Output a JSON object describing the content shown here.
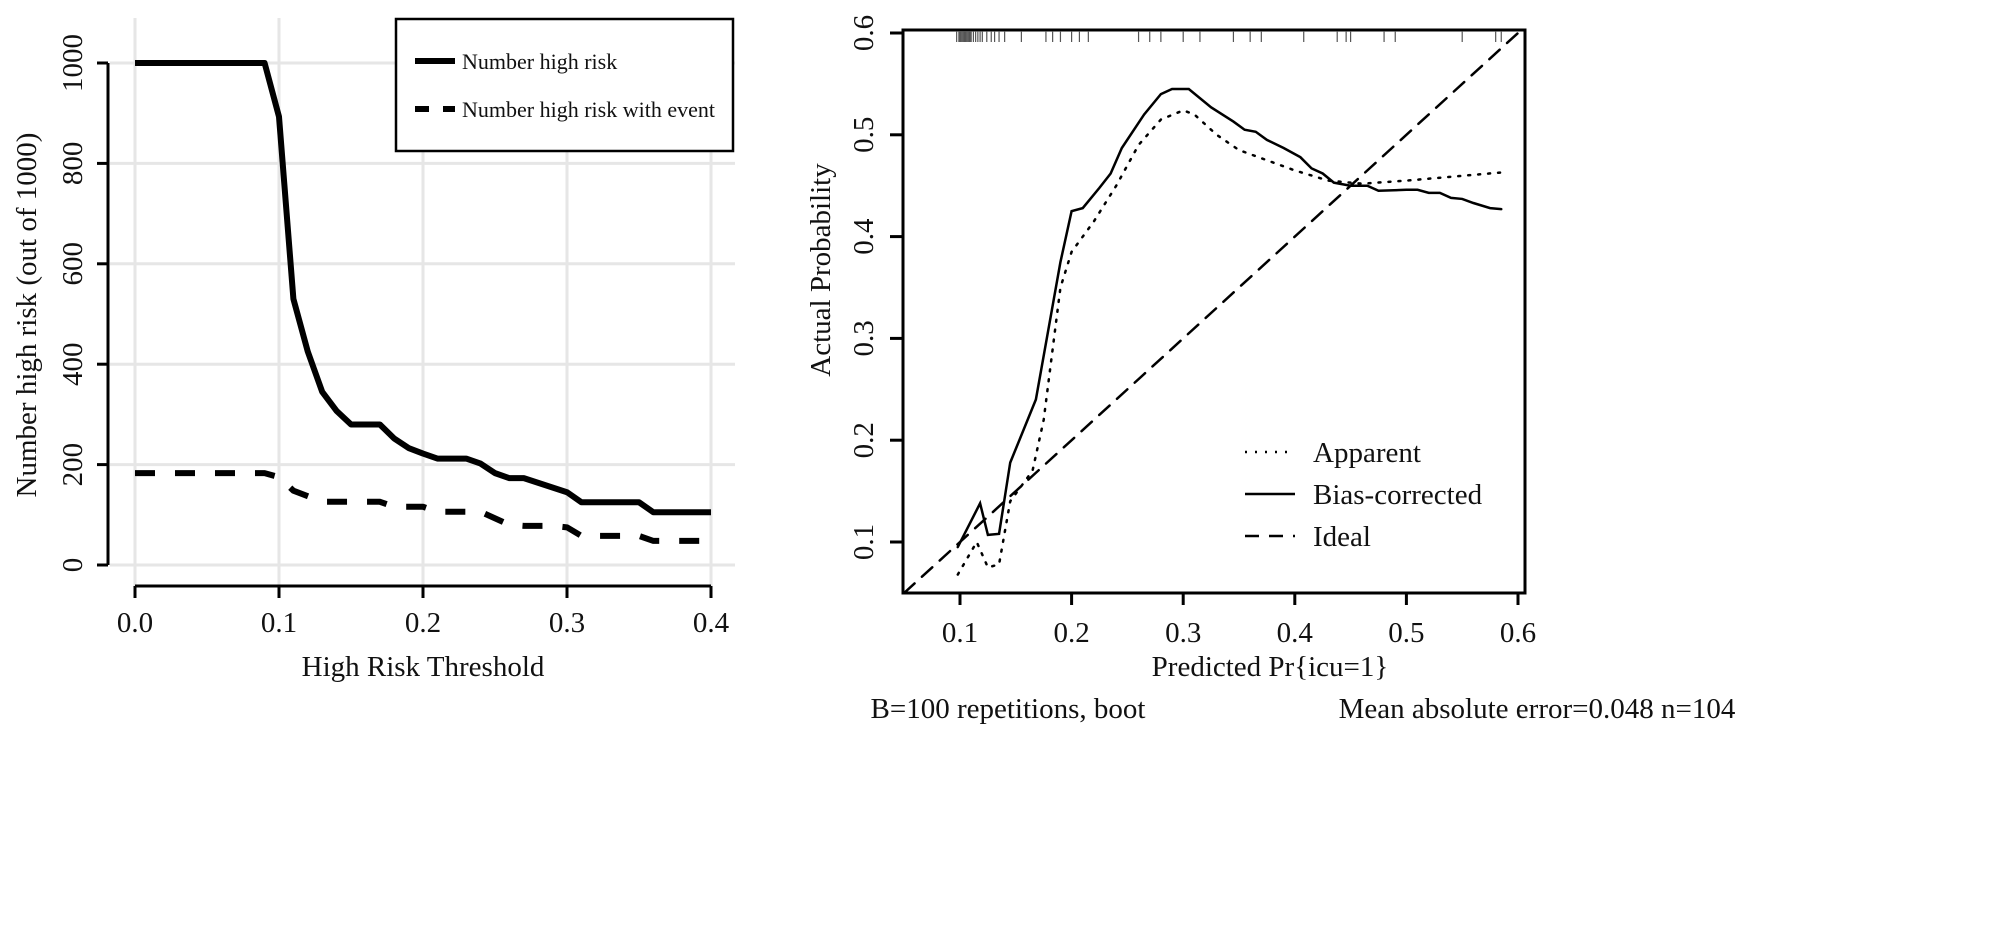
{
  "chart_data": [
    {
      "type": "line",
      "title": "",
      "xlabel": "High Risk Threshold",
      "ylabel": "Number high risk (out of 1000)",
      "xlim": [
        0,
        0.4
      ],
      "ylim": [
        0,
        1000
      ],
      "xticks": [
        "0.0",
        "0.1",
        "0.2",
        "0.3",
        "0.4"
      ],
      "yticks": [
        "0",
        "200",
        "400",
        "600",
        "800",
        "1000"
      ],
      "grid": true,
      "legend": "top-right",
      "series": [
        {
          "name": "Number high risk",
          "style": "solid-thick",
          "x": [
            0,
            0.09,
            0.1,
            0.11,
            0.12,
            0.13,
            0.14,
            0.15,
            0.17,
            0.18,
            0.19,
            0.2,
            0.21,
            0.23,
            0.24,
            0.25,
            0.26,
            0.27,
            0.3,
            0.31,
            0.35,
            0.36,
            0.4
          ],
          "y": [
            1000,
            1000,
            893,
            530,
            425,
            345,
            307,
            280,
            280,
            252,
            233,
            222,
            212,
            212,
            202,
            183,
            173,
            173,
            145,
            125,
            125,
            105,
            105
          ]
        },
        {
          "name": "Number high risk with event",
          "style": "dashed-thick",
          "x": [
            0,
            0.09,
            0.1,
            0.11,
            0.12,
            0.13,
            0.17,
            0.18,
            0.2,
            0.21,
            0.24,
            0.26,
            0.27,
            0.29,
            0.3,
            0.31,
            0.35,
            0.36,
            0.4
          ],
          "y": [
            183,
            183,
            175,
            148,
            137,
            126,
            126,
            116,
            116,
            106,
            106,
            80,
            78,
            78,
            75,
            58,
            58,
            48,
            48
          ]
        }
      ]
    },
    {
      "type": "line",
      "title": "",
      "xlabel": "Predicted Pr{icu=1}",
      "ylabel": "Actual Probability",
      "xlim": [
        0.05,
        0.606
      ],
      "ylim": [
        0.05,
        0.603
      ],
      "xticks": [
        "0.1",
        "0.2",
        "0.3",
        "0.4",
        "0.5",
        "0.6"
      ],
      "yticks": [
        "0.1",
        "0.2",
        "0.3",
        "0.4",
        "0.5",
        "0.6"
      ],
      "grid": false,
      "legend": "bottom-right",
      "footnote_left": "B=100 repetitions, boot",
      "footnote_right": "Mean absolute error=0.048 n=104",
      "rug": [
        0.097,
        0.099,
        0.1,
        0.101,
        0.102,
        0.103,
        0.104,
        0.105,
        0.106,
        0.107,
        0.108,
        0.109,
        0.11,
        0.112,
        0.114,
        0.116,
        0.118,
        0.12,
        0.124,
        0.128,
        0.131,
        0.135,
        0.14,
        0.155,
        0.177,
        0.183,
        0.19,
        0.2,
        0.207,
        0.215,
        0.26,
        0.27,
        0.28,
        0.3,
        0.315,
        0.345,
        0.36,
        0.37,
        0.408,
        0.438,
        0.446,
        0.45,
        0.48,
        0.49,
        0.55,
        0.58,
        0.585
      ],
      "series": [
        {
          "name": "Apparent",
          "style": "dotted",
          "x": [
            0.098,
            0.115,
            0.125,
            0.135,
            0.145,
            0.165,
            0.175,
            0.19,
            0.2,
            0.22,
            0.24,
            0.26,
            0.28,
            0.3,
            0.31,
            0.33,
            0.35,
            0.4,
            0.43,
            0.46,
            0.5,
            0.585
          ],
          "y": [
            0.068,
            0.1,
            0.075,
            0.078,
            0.14,
            0.17,
            0.22,
            0.35,
            0.385,
            0.415,
            0.45,
            0.49,
            0.515,
            0.524,
            0.52,
            0.5,
            0.485,
            0.465,
            0.455,
            0.452,
            0.455,
            0.463
          ]
        },
        {
          "name": "Bias-corrected",
          "style": "solid",
          "x": [
            0.098,
            0.105,
            0.118,
            0.125,
            0.135,
            0.145,
            0.168,
            0.19,
            0.2,
            0.21,
            0.225,
            0.235,
            0.245,
            0.265,
            0.28,
            0.29,
            0.305,
            0.325,
            0.345,
            0.355,
            0.365,
            0.375,
            0.39,
            0.405,
            0.415,
            0.425,
            0.435,
            0.45,
            0.465,
            0.475,
            0.5,
            0.51,
            0.52,
            0.53,
            0.54,
            0.55,
            0.56,
            0.575,
            0.585
          ],
          "y": [
            0.095,
            0.11,
            0.138,
            0.107,
            0.108,
            0.178,
            0.24,
            0.375,
            0.425,
            0.428,
            0.448,
            0.462,
            0.487,
            0.52,
            0.54,
            0.545,
            0.545,
            0.527,
            0.513,
            0.505,
            0.503,
            0.495,
            0.487,
            0.478,
            0.467,
            0.462,
            0.453,
            0.45,
            0.45,
            0.445,
            0.446,
            0.446,
            0.443,
            0.443,
            0.438,
            0.437,
            0.433,
            0.428,
            0.427
          ]
        },
        {
          "name": "Ideal",
          "style": "dashed",
          "x": [
            0.05,
            0.606
          ],
          "y": [
            0.05,
            0.606
          ]
        }
      ]
    }
  ]
}
